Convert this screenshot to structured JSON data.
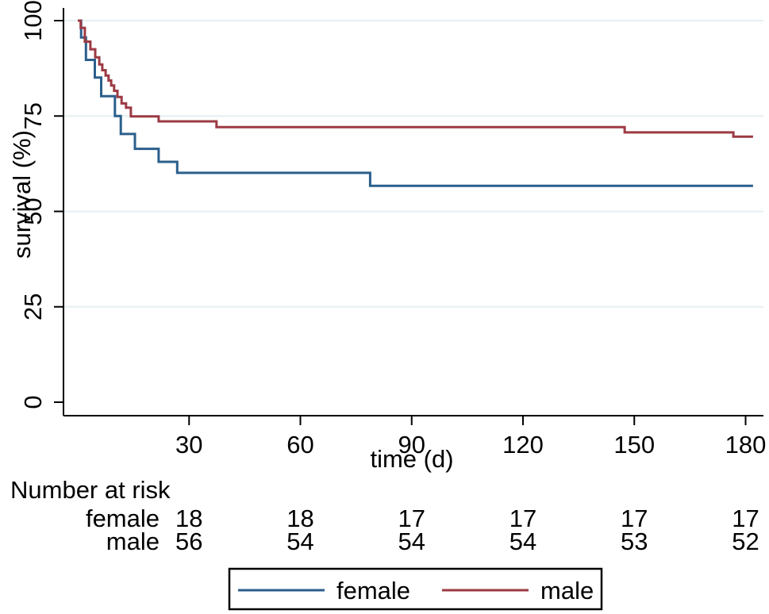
{
  "figure": {
    "background": "#ffffff",
    "colors": {
      "female": "#2B5F8C",
      "male": "#9C3A43",
      "grid": "#E7F1F3",
      "axis": "#000000"
    }
  },
  "chart_data": {
    "type": "line",
    "subtype": "kaplan-meier-step-survival",
    "title": "",
    "xlabel": "time (d)",
    "ylabel": "survival (%)",
    "xlim": [
      -4,
      184
    ],
    "ylim": [
      0,
      100
    ],
    "xticks": [
      30,
      60,
      90,
      120,
      150,
      180
    ],
    "yticks": [
      0,
      25,
      50,
      75,
      100
    ],
    "grid": "horizontal gridlines at 25, 50, 75, 100",
    "legend_position": "bottom-center-boxed",
    "end_day": 182,
    "series": [
      {
        "name": "female",
        "color": "#2B5F8C",
        "points": [
          [
            0,
            100
          ],
          [
            0.9,
            95.6
          ],
          [
            2.2,
            89.7
          ],
          [
            4.6,
            85.1
          ],
          [
            6.3,
            80.2
          ],
          [
            10,
            75.0
          ],
          [
            11.6,
            70.3
          ],
          [
            15.4,
            66.4
          ],
          [
            21.8,
            63.0
          ],
          [
            26.8,
            60.1
          ],
          [
            78.8,
            56.7
          ]
        ]
      },
      {
        "name": "male",
        "color": "#9C3A43",
        "points": [
          [
            0,
            100
          ],
          [
            0.8,
            98.1
          ],
          [
            1.9,
            94.5
          ],
          [
            3.4,
            92.5
          ],
          [
            4.7,
            90.4
          ],
          [
            5.8,
            88.5
          ],
          [
            6.6,
            87.0
          ],
          [
            7.5,
            85.6
          ],
          [
            8.3,
            84.3
          ],
          [
            9,
            83.0
          ],
          [
            9.8,
            81.6
          ],
          [
            10.7,
            80.0
          ],
          [
            11.8,
            78.3
          ],
          [
            13,
            77.2
          ],
          [
            14.3,
            74.9
          ],
          [
            21.8,
            73.6
          ],
          [
            37.4,
            72.1
          ],
          [
            147.4,
            70.7
          ],
          [
            176.7,
            69.6
          ]
        ]
      }
    ]
  },
  "risk_table": {
    "title": "Number at risk",
    "times": [
      30,
      60,
      90,
      120,
      150,
      180
    ],
    "rows": [
      {
        "label": "female",
        "counts": [
          "18",
          "18",
          "17",
          "17",
          "17",
          "17"
        ]
      },
      {
        "label": "male",
        "counts": [
          "56",
          "54",
          "54",
          "54",
          "53",
          "52"
        ]
      }
    ]
  },
  "legend": {
    "items": [
      {
        "label": "female",
        "color": "#2B5F8C"
      },
      {
        "label": "male",
        "color": "#9C3A43"
      }
    ]
  }
}
